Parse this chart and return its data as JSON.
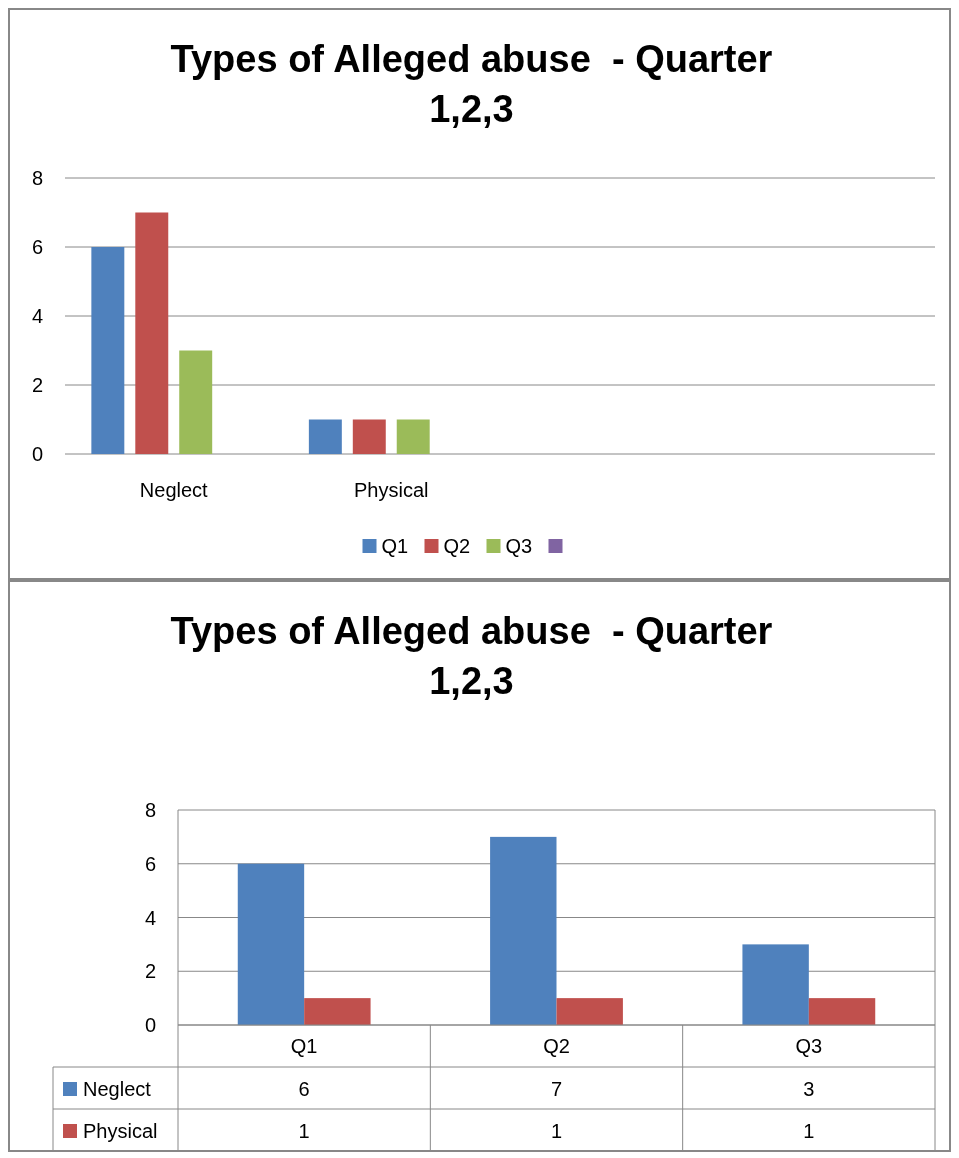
{
  "chart_data": [
    {
      "type": "bar",
      "title": "Types of Alleged abuse  - Quarter 1,2,3",
      "categories": [
        "Neglect",
        "Physical",
        null,
        null
      ],
      "series": [
        {
          "name": "Q1",
          "color": "#4f81bd",
          "values": [
            6,
            1,
            null,
            null
          ]
        },
        {
          "name": "Q2",
          "color": "#c0504d",
          "values": [
            7,
            1,
            null,
            null
          ]
        },
        {
          "name": "Q3",
          "color": "#9bbb59",
          "values": [
            3,
            1,
            null,
            null
          ]
        },
        {
          "color": "#8064a2",
          "values": [
            null,
            null,
            null,
            null
          ]
        }
      ],
      "ylim": [
        0,
        8
      ],
      "yticks": [
        0,
        2,
        4,
        6,
        8
      ],
      "grid": "y",
      "legend": "bottom"
    },
    {
      "type": "bar",
      "title": "Types of Alleged abuse  - Quarter 1,2,3",
      "categories": [
        "Q1",
        "Q2",
        "Q3"
      ],
      "series": [
        {
          "name": "Neglect",
          "color": "#4f81bd",
          "values": [
            6,
            7,
            3
          ]
        },
        {
          "name": "Physical",
          "color": "#c0504d",
          "values": [
            1,
            1,
            1
          ]
        }
      ],
      "ylim": [
        0,
        8
      ],
      "yticks": [
        0,
        2,
        4,
        6,
        8
      ],
      "grid": "y",
      "legend": "bottom",
      "data_labels": true
    }
  ]
}
